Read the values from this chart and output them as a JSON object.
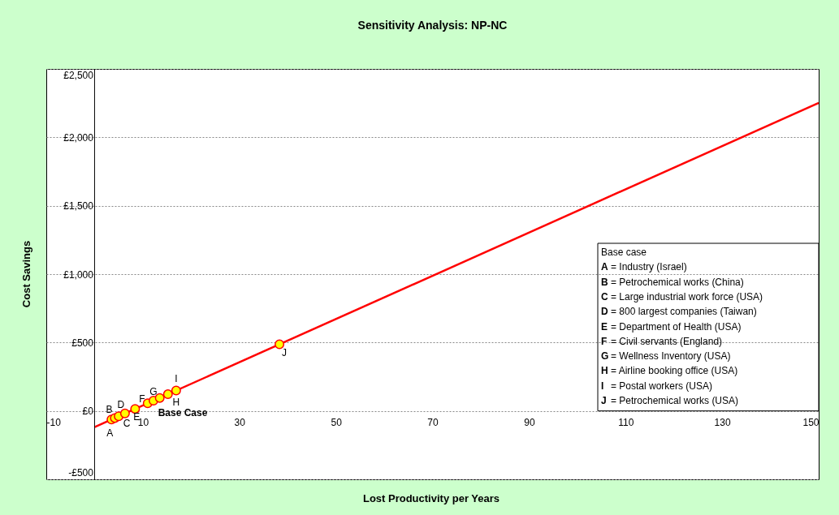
{
  "chart_data": {
    "type": "scatter",
    "title": "Sensitivity Analysis: NP-NC",
    "xlabel": "Lost Productivity per Years",
    "ylabel": "Cost Savings",
    "xlim": [
      -10,
      150
    ],
    "xticks": [
      -10,
      10,
      30,
      50,
      70,
      90,
      110,
      130,
      150
    ],
    "ylim": [
      -500,
      2500
    ],
    "yticks": [
      {
        "value": -500,
        "label": "-£500"
      },
      {
        "value": 0,
        "label": "£0"
      },
      {
        "value": 500,
        "label": "£500"
      },
      {
        "value": 1000,
        "label": "£1,000"
      },
      {
        "value": 1500,
        "label": "£1,500"
      },
      {
        "value": 2000,
        "label": "£2,000"
      },
      {
        "value": 2500,
        "label": "£2,500"
      }
    ],
    "grid": "y",
    "series": [
      {
        "type": "line",
        "color": "#ff0000",
        "line_style": "solid",
        "marker": "none",
        "x": [
          0,
          150
        ],
        "values": [
          -118,
          2252
        ]
      },
      {
        "color": "#ffff00",
        "marker": "circle",
        "x": [
          3.5,
          4.2,
          5.0,
          6.3,
          8.4,
          11.0,
          12.2,
          13.5,
          15.2,
          16.9,
          38.3
        ],
        "values": [
          -63,
          -52,
          -39,
          -18,
          15,
          56,
          75,
          95,
          122,
          149,
          487
        ]
      }
    ],
    "annotations": [
      {
        "text": "A",
        "x": 3.5,
        "y": -63
      },
      {
        "text": "B",
        "x": 4.2,
        "y": -52
      },
      {
        "text": "C",
        "x": 5.0,
        "y": -39
      },
      {
        "text": "D",
        "x": 6.3,
        "y": -18
      },
      {
        "text": "E",
        "x": 8.4,
        "y": 15
      },
      {
        "text": "F",
        "x": 11.0,
        "y": 56
      },
      {
        "text": "G",
        "x": 12.2,
        "y": 75
      },
      {
        "text": "Base Case",
        "x": 13.5,
        "y": 95
      },
      {
        "text": "H",
        "x": 15.2,
        "y": 122
      },
      {
        "text": "I",
        "x": 16.9,
        "y": 149
      },
      {
        "text": "J",
        "x": 38.3,
        "y": 487
      },
      "Base case",
      "A = Industry (Israel)",
      "B = Petrochemical works (China)",
      "C = Large industrial work force (USA)",
      "D = 800 largest companies (Taiwan)",
      "E = Department of Health (USA)",
      "F = Civil servants (England)",
      "G = Wellness Inventory (USA)",
      "H = Airline booking office (USA)",
      "I = Postal workers (USA)",
      "J = Petrochemical works (USA)"
    ]
  }
}
